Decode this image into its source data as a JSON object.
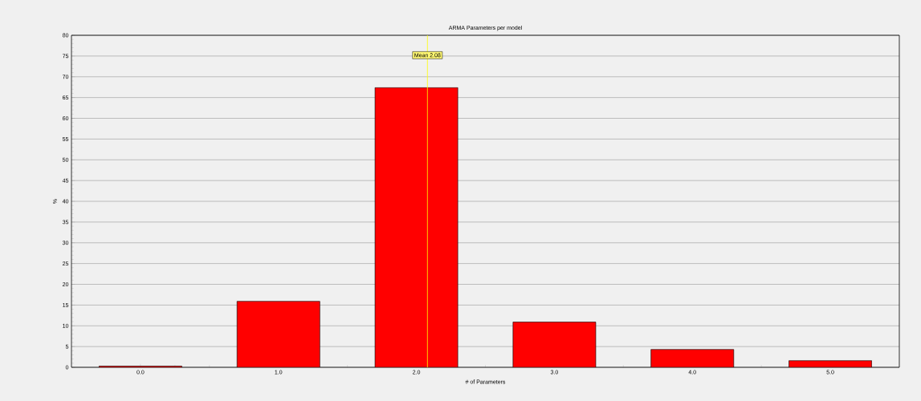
{
  "chart_data": {
    "type": "bar",
    "title": "ARMA Parameters per model",
    "xlabel": "# of Parameters",
    "ylabel": "%",
    "x": [
      0,
      1,
      2,
      3,
      4,
      5
    ],
    "values": [
      0.3,
      15.9,
      67.4,
      10.9,
      4.3,
      1.6
    ],
    "color": "#ff0000",
    "xlim": [
      -0.5,
      5.5
    ],
    "xticks": [
      {
        "value": 0,
        "label": "0.0"
      },
      {
        "value": 1,
        "label": "1.0"
      },
      {
        "value": 2,
        "label": "2.0"
      },
      {
        "value": 3,
        "label": "3.0"
      },
      {
        "value": 4,
        "label": "4.0"
      },
      {
        "value": 5,
        "label": "5.0"
      }
    ],
    "ylim": [
      0,
      80
    ],
    "yticks": [
      0,
      5,
      10,
      15,
      20,
      25,
      30,
      35,
      40,
      45,
      50,
      55,
      60,
      65,
      70,
      75,
      80
    ],
    "grid": "y",
    "ref_lines": [
      {
        "axis": "x",
        "value": 2.08,
        "label": "Mean 2.08",
        "color": "#ffff00"
      }
    ]
  }
}
